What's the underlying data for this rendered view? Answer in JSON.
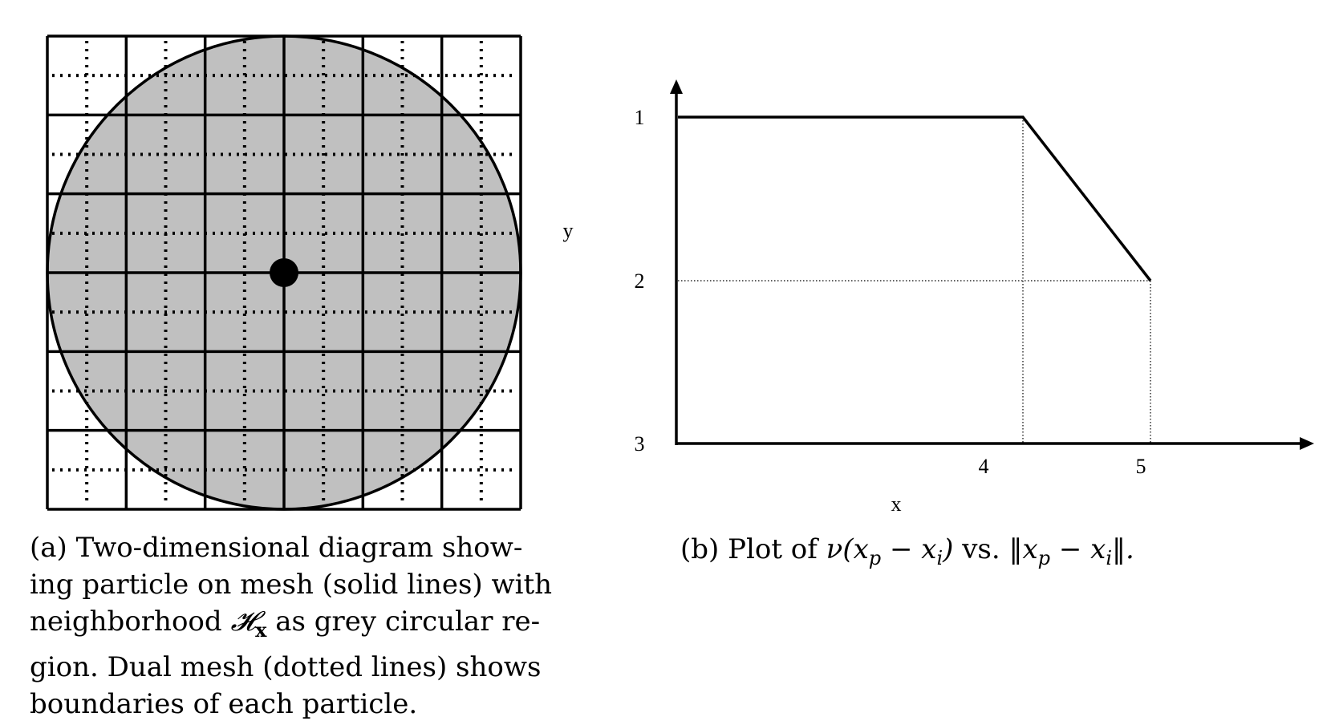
{
  "panel_a": {
    "caption": {
      "tag": "(a)",
      "lines": [
        "Two-dimensional diagram show-",
        "ing particle on mesh (solid lines) with",
        "neighborhood",
        "as grey circular re-",
        "gion. Dual mesh (dotted lines) shows",
        "boundaries of each particle."
      ],
      "symbol": "𝓗",
      "symbol_subscript": "x"
    },
    "colors": {
      "region": "#c0c0c0",
      "lines": "#000000",
      "particle": "#000000"
    }
  },
  "panel_b": {
    "caption": {
      "tag": "(b)",
      "text_before": "Plot of",
      "expr_left": "ν(x",
      "sub_p": "p",
      "minus": " − x",
      "sub_i": "i",
      "close": ")",
      "vs": "vs.",
      "norm_open": "‖x",
      "norm_close": "‖."
    },
    "chart_data": {
      "type": "line",
      "xlabel": "x",
      "ylabel": "y",
      "x_ticks": [
        "4",
        "5"
      ],
      "y_ticks": [
        "1",
        "2",
        "3"
      ],
      "series": [
        {
          "points": [
            [
              0,
              1
            ],
            [
              4,
              1
            ],
            [
              5,
              2
            ]
          ]
        }
      ],
      "guides": "dotted drop lines from the knee and end points to the axes"
    }
  }
}
